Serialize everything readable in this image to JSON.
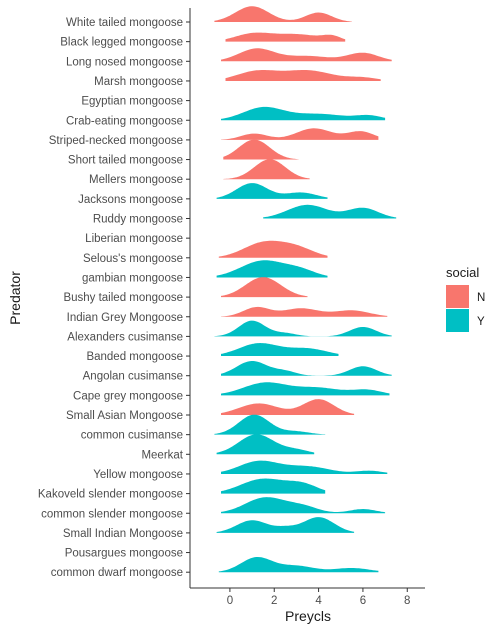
{
  "chart_data": {
    "type": "ridgeline",
    "title": "",
    "xlabel": "Preycls",
    "ylabel": "Predator",
    "xlim": [
      -1.8,
      8.8
    ],
    "xticks": [
      0,
      2,
      4,
      6,
      8
    ],
    "grid": false,
    "legend": {
      "title": "social",
      "placement": "right",
      "entries": [
        {
          "key": "N",
          "label": "N",
          "color": "#F8766D"
        },
        {
          "key": "Y",
          "label": "Y",
          "color": "#00BFC4"
        }
      ]
    },
    "categories": [
      {
        "name": "White tailed mongoose",
        "social": "N",
        "range": [
          -0.7,
          5.5
        ],
        "peaks": [
          {
            "x": 1.0,
            "h": 0.75,
            "w": 0.75
          },
          {
            "x": 4.0,
            "h": 0.45,
            "w": 0.6
          }
        ]
      },
      {
        "name": "Black legged mongoose",
        "social": "N",
        "range": [
          -0.2,
          5.2
        ],
        "peaks": [
          {
            "x": 1.0,
            "h": 0.35,
            "w": 0.8
          },
          {
            "x": 3.0,
            "h": 0.35,
            "w": 1.1
          },
          {
            "x": 4.6,
            "h": 0.2,
            "w": 0.4
          }
        ]
      },
      {
        "name": "Long nosed mongoose",
        "social": "N",
        "range": [
          -0.4,
          7.3
        ],
        "peaks": [
          {
            "x": 1.2,
            "h": 0.6,
            "w": 0.8
          },
          {
            "x": 3.5,
            "h": 0.25,
            "w": 1.0
          },
          {
            "x": 6.0,
            "h": 0.4,
            "w": 0.7
          }
        ]
      },
      {
        "name": "Marsh mongoose",
        "social": "N",
        "range": [
          -0.2,
          6.8
        ],
        "peaks": [
          {
            "x": 1.2,
            "h": 0.45,
            "w": 0.9
          },
          {
            "x": 3.5,
            "h": 0.5,
            "w": 1.1
          },
          {
            "x": 6.0,
            "h": 0.15,
            "w": 0.7
          }
        ]
      },
      {
        "name": "Egyptian mongoose",
        "social": "N",
        "range": [],
        "peaks": []
      },
      {
        "name": "Crab-eating mongoose",
        "social": "Y",
        "range": [
          -0.4,
          7.0
        ],
        "peaks": [
          {
            "x": 1.5,
            "h": 0.6,
            "w": 0.9
          },
          {
            "x": 4.0,
            "h": 0.3,
            "w": 1.2
          },
          {
            "x": 6.3,
            "h": 0.2,
            "w": 0.6
          }
        ]
      },
      {
        "name": "Striped-necked mongoose",
        "social": "N",
        "range": [
          -0.4,
          6.7
        ],
        "peaks": [
          {
            "x": 1.1,
            "h": 0.3,
            "w": 0.6
          },
          {
            "x": 3.8,
            "h": 0.55,
            "w": 0.8
          },
          {
            "x": 5.9,
            "h": 0.4,
            "w": 0.6
          }
        ]
      },
      {
        "name": "Short tailed mongoose",
        "social": "N",
        "range": [
          -0.3,
          3.1
        ],
        "peaks": [
          {
            "x": 1.1,
            "h": 0.95,
            "w": 0.7
          }
        ]
      },
      {
        "name": "Mellers mongoose",
        "social": "N",
        "range": [
          -0.3,
          3.6
        ],
        "peaks": [
          {
            "x": 1.8,
            "h": 0.95,
            "w": 0.7
          }
        ]
      },
      {
        "name": "Jacksons mongoose",
        "social": "Y",
        "range": [
          -0.6,
          4.4
        ],
        "peaks": [
          {
            "x": 1.0,
            "h": 0.75,
            "w": 0.7
          },
          {
            "x": 3.2,
            "h": 0.3,
            "w": 0.7
          }
        ]
      },
      {
        "name": "Ruddy mongoose",
        "social": "Y",
        "range": [
          1.5,
          7.5
        ],
        "peaks": [
          {
            "x": 3.5,
            "h": 0.65,
            "w": 0.9
          },
          {
            "x": 6.0,
            "h": 0.5,
            "w": 0.7
          }
        ]
      },
      {
        "name": "Liberian mongoose",
        "social": "N",
        "range": [],
        "peaks": []
      },
      {
        "name": "Selous's mongoose",
        "social": "N",
        "range": [
          -0.5,
          4.4
        ],
        "peaks": [
          {
            "x": 1.5,
            "h": 0.7,
            "w": 0.9
          },
          {
            "x": 3.0,
            "h": 0.45,
            "w": 0.8
          }
        ]
      },
      {
        "name": "gambian mongoose",
        "social": "Y",
        "range": [
          -0.6,
          4.4
        ],
        "peaks": [
          {
            "x": 1.5,
            "h": 0.8,
            "w": 1.0
          },
          {
            "x": 3.2,
            "h": 0.3,
            "w": 0.7
          }
        ]
      },
      {
        "name": "Bushy tailed mongoose",
        "social": "N",
        "range": [
          -0.4,
          3.5
        ],
        "peaks": [
          {
            "x": 1.5,
            "h": 0.95,
            "w": 0.8
          }
        ]
      },
      {
        "name": "Indian Grey Mongoose",
        "social": "N",
        "range": [
          -0.4,
          7.1
        ],
        "peaks": [
          {
            "x": 1.2,
            "h": 0.45,
            "w": 0.6
          },
          {
            "x": 3.2,
            "h": 0.4,
            "w": 0.8
          },
          {
            "x": 5.5,
            "h": 0.3,
            "w": 0.8
          }
        ]
      },
      {
        "name": "Alexanders cusimanse",
        "social": "Y",
        "range": [
          -0.7,
          7.3
        ],
        "peaks": [
          {
            "x": 1.0,
            "h": 0.75,
            "w": 0.6
          },
          {
            "x": 2.5,
            "h": 0.15,
            "w": 0.5
          },
          {
            "x": 6.0,
            "h": 0.45,
            "w": 0.6
          }
        ]
      },
      {
        "name": "Banded mongoose",
        "social": "Y",
        "range": [
          -0.4,
          4.9
        ],
        "peaks": [
          {
            "x": 1.3,
            "h": 0.6,
            "w": 0.9
          },
          {
            "x": 3.5,
            "h": 0.35,
            "w": 0.9
          }
        ]
      },
      {
        "name": "Angolan cusimanse",
        "social": "Y",
        "range": [
          -0.4,
          7.3
        ],
        "peaks": [
          {
            "x": 1.0,
            "h": 0.7,
            "w": 0.7
          },
          {
            "x": 2.5,
            "h": 0.2,
            "w": 0.5
          },
          {
            "x": 6.0,
            "h": 0.45,
            "w": 0.6
          }
        ]
      },
      {
        "name": "Cape grey mongoose",
        "social": "Y",
        "range": [
          -0.4,
          7.2
        ],
        "peaks": [
          {
            "x": 1.6,
            "h": 0.6,
            "w": 1.0
          },
          {
            "x": 4.0,
            "h": 0.35,
            "w": 1.0
          },
          {
            "x": 6.2,
            "h": 0.25,
            "w": 0.7
          }
        ]
      },
      {
        "name": "Small Asian Mongoose",
        "social": "N",
        "range": [
          -0.4,
          5.6
        ],
        "peaks": [
          {
            "x": 1.3,
            "h": 0.55,
            "w": 0.9
          },
          {
            "x": 4.0,
            "h": 0.75,
            "w": 0.7
          }
        ]
      },
      {
        "name": "common cusimanse",
        "social": "Y",
        "range": [
          -0.7,
          4.3
        ],
        "peaks": [
          {
            "x": 1.1,
            "h": 0.95,
            "w": 0.7
          },
          {
            "x": 3.0,
            "h": 0.15,
            "w": 0.6
          }
        ]
      },
      {
        "name": "Meerkat",
        "social": "Y",
        "range": [
          -0.6,
          3.8
        ],
        "peaks": [
          {
            "x": 1.2,
            "h": 0.95,
            "w": 0.8
          },
          {
            "x": 3.0,
            "h": 0.2,
            "w": 0.6
          }
        ]
      },
      {
        "name": "Yellow mongoose",
        "social": "Y",
        "range": [
          -0.4,
          7.1
        ],
        "peaks": [
          {
            "x": 1.3,
            "h": 0.6,
            "w": 0.9
          },
          {
            "x": 3.5,
            "h": 0.35,
            "w": 1.0
          },
          {
            "x": 6.3,
            "h": 0.15,
            "w": 0.6
          }
        ]
      },
      {
        "name": "Kakoveld slender mongoose",
        "social": "Y",
        "range": [
          -0.4,
          4.3
        ],
        "peaks": [
          {
            "x": 1.5,
            "h": 0.7,
            "w": 1.0
          },
          {
            "x": 3.3,
            "h": 0.4,
            "w": 0.7
          }
        ]
      },
      {
        "name": "common slender mongoose",
        "social": "Y",
        "range": [
          -0.4,
          7.0
        ],
        "peaks": [
          {
            "x": 1.6,
            "h": 0.75,
            "w": 0.9
          },
          {
            "x": 3.3,
            "h": 0.3,
            "w": 0.7
          },
          {
            "x": 6.0,
            "h": 0.2,
            "w": 0.6
          }
        ]
      },
      {
        "name": "Small Indian Mongoose",
        "social": "Y",
        "range": [
          -0.6,
          5.6
        ],
        "peaks": [
          {
            "x": 1.0,
            "h": 0.6,
            "w": 0.7
          },
          {
            "x": 4.0,
            "h": 0.75,
            "w": 0.7
          },
          {
            "x": 2.5,
            "h": 0.2,
            "w": 0.5
          }
        ]
      },
      {
        "name": "Pousargues mongoose",
        "social": "Y",
        "range": [],
        "peaks": []
      },
      {
        "name": "common dwarf mongoose",
        "social": "Y",
        "range": [
          -0.5,
          6.7
        ],
        "peaks": [
          {
            "x": 1.2,
            "h": 0.7,
            "w": 0.7
          },
          {
            "x": 3.0,
            "h": 0.3,
            "w": 0.8
          },
          {
            "x": 5.5,
            "h": 0.2,
            "w": 0.8
          }
        ]
      }
    ]
  }
}
